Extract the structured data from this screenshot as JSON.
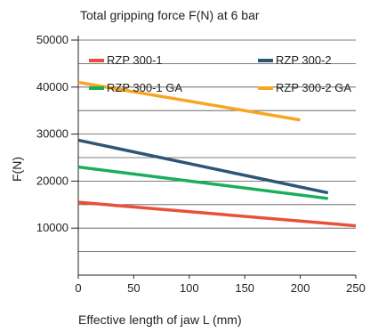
{
  "chart_data": {
    "type": "line",
    "title": "Total gripping force F(N) at 6 bar",
    "xlabel": "Effective length of jaw L (mm)",
    "ylabel": "F(N)",
    "xlim": [
      0,
      250
    ],
    "ylim": [
      0,
      50000
    ],
    "x_ticks": [
      0,
      50,
      100,
      150,
      200,
      250
    ],
    "y_ticks": [
      10000,
      20000,
      30000,
      40000,
      50000
    ],
    "grid": true,
    "legend_position": "top",
    "series": [
      {
        "name": "RZP 300-1",
        "color": "#e8503a",
        "x": [
          0,
          250
        ],
        "y": [
          15500,
          10500
        ]
      },
      {
        "name": "RZP 300-2",
        "color": "#2f5575",
        "x": [
          0,
          225
        ],
        "y": [
          28700,
          17500
        ]
      },
      {
        "name": "RZP 300-1 GA",
        "color": "#1aae5c",
        "x": [
          0,
          225
        ],
        "y": [
          23000,
          16300
        ]
      },
      {
        "name": "RZP 300-2 GA",
        "color": "#f6a623",
        "x": [
          0,
          200
        ],
        "y": [
          41000,
          33000
        ]
      }
    ]
  }
}
